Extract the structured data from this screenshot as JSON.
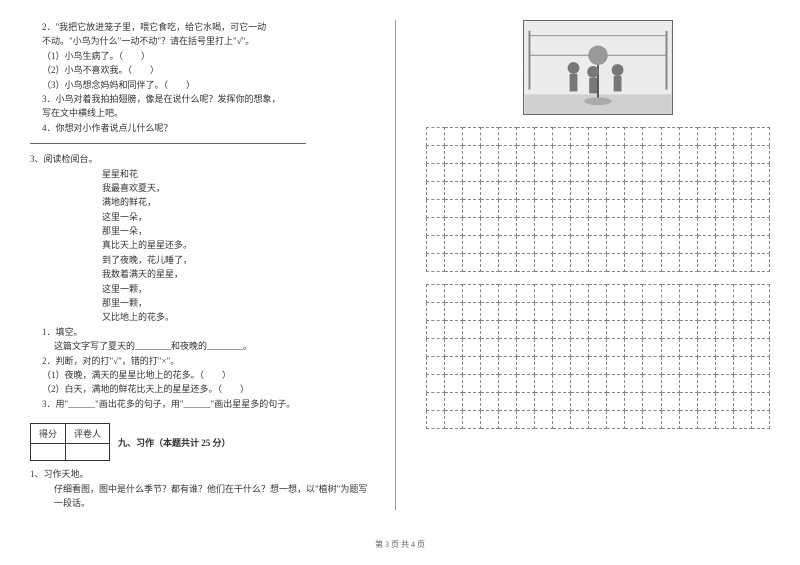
{
  "leftColumn": {
    "q2": {
      "intro1": "2．\"我把它放进笼子里，喂它食吃，给它水喝，可它一动",
      "intro2": "不动。\"小鸟为什么\"一动不动\"？请在括号里打上\"√\"。",
      "opt1": "（1）小鸟生病了。（　　）",
      "opt2": "（2）小鸟不喜欢我。（　　）",
      "opt3": "（3）小鸟想念妈妈和同伴了。（　　）"
    },
    "q3text": {
      "line1": "3．小鸟对着我拍拍翅膀，像是在说什么呢？发挥你的想象，",
      "line2": "写在文中横线上吧。"
    },
    "q4": "4．你想对小作者说点儿什么呢？",
    "reading": {
      "title": "3、阅读检阅台。",
      "poemTitle": "星星和花",
      "lines": [
        "我最喜欢夏天，",
        "满地的鲜花，",
        "这里一朵，",
        "那里一朵，",
        "真比天上的星星还多。",
        "到了夜晚，花儿睡了，",
        "我数着满天的星星，",
        "这里一颗，",
        "那里一颗，",
        "又比地上的花多。"
      ],
      "sub1": "1．填空。",
      "sub1text": "这篇文字写了夏天的________和夜晚的________。",
      "sub2": "2．判断，对的打\"√\"，错的打\"×\"。",
      "sub2a": "（1）夜晚，满天的星星比地上的花多。（　　）",
      "sub2b": "（2）白天，满地的鲜花比天上的星星还多。（　　）",
      "sub3": "3．用\"______\"画出花多的句子，用\"______\"画出星星多的句子。"
    },
    "scoreTable": {
      "col1": "得分",
      "col2": "评卷人"
    },
    "section9": "九、习作（本题共计 25 分）",
    "writing": {
      "title": "1、习作天地。",
      "prompt": "仔细看图，图中是什么季节？都有谁？他们在干什么？想一想，以\"植树\"为题写一段话。"
    }
  },
  "footer": "第 3 页 共 4 页",
  "gridConfig": {
    "cols": 19,
    "block1Rows": 8,
    "block2Rows": 8
  }
}
